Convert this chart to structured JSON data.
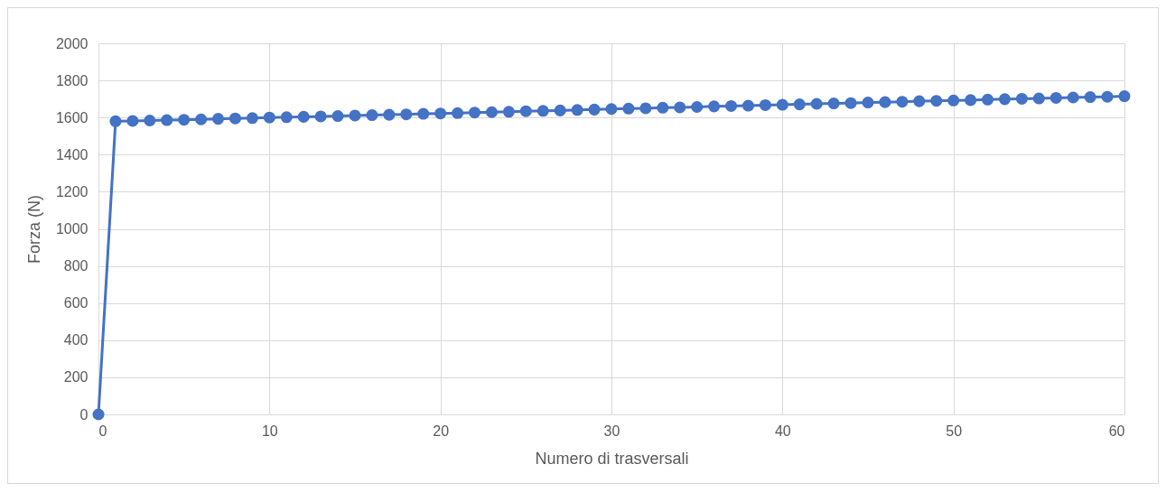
{
  "chart_data": {
    "type": "line",
    "xlabel": "Numero di trasversali",
    "ylabel": "Forza (N)",
    "x": [
      0,
      1,
      2,
      3,
      4,
      5,
      6,
      7,
      8,
      9,
      10,
      11,
      12,
      13,
      14,
      15,
      16,
      17,
      18,
      19,
      20,
      21,
      22,
      23,
      24,
      25,
      26,
      27,
      28,
      29,
      30,
      31,
      32,
      33,
      34,
      35,
      36,
      37,
      38,
      39,
      40,
      41,
      42,
      43,
      44,
      45,
      46,
      47,
      48,
      49,
      50,
      51,
      52,
      53,
      54,
      55,
      56,
      57,
      58,
      59,
      60
    ],
    "series": [
      {
        "color": "#4472c4",
        "values": [
          0,
          1580,
          1582,
          1584,
          1586,
          1588,
          1590,
          1593,
          1595,
          1597,
          1600,
          1602,
          1604,
          1606,
          1608,
          1611,
          1613,
          1615,
          1617,
          1620,
          1622,
          1624,
          1627,
          1629,
          1631,
          1634,
          1636,
          1638,
          1641,
          1643,
          1646,
          1648,
          1650,
          1653,
          1655,
          1657,
          1660,
          1662,
          1664,
          1667,
          1669,
          1671,
          1674,
          1676,
          1678,
          1681,
          1683,
          1685,
          1688,
          1690,
          1692,
          1694,
          1697,
          1699,
          1701,
          1703,
          1706,
          1708,
          1710,
          1712,
          1715
        ]
      }
    ],
    "xlim": [
      0,
      60
    ],
    "xticks": [
      0,
      10,
      20,
      30,
      40,
      50,
      60
    ],
    "ylim": [
      0,
      2000
    ],
    "yticks": [
      0,
      200,
      400,
      600,
      800,
      1000,
      1200,
      1400,
      1600,
      1800,
      2000
    ],
    "grid": true,
    "marker": "circle",
    "line_style": "solid",
    "legend": false
  }
}
